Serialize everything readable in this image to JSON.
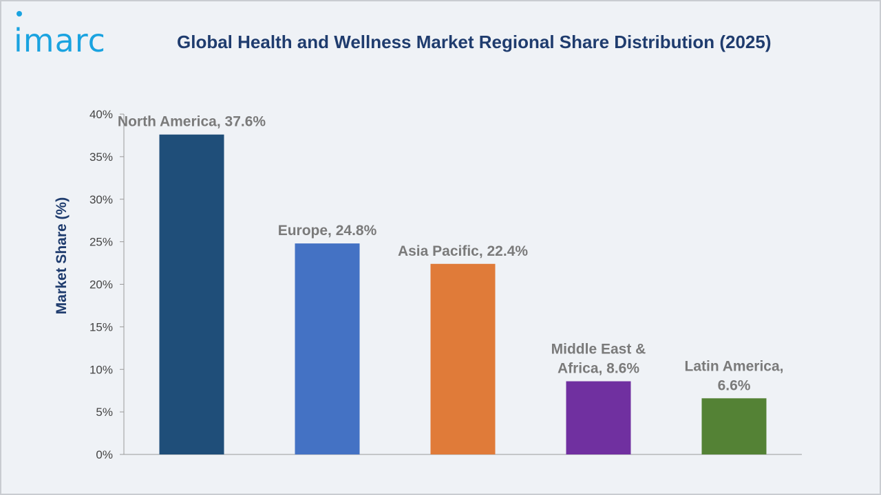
{
  "header": {
    "logo_text": "imarc",
    "title": "Global Health and Wellness Market Regional Share Distribution (2025)"
  },
  "colors": {
    "logo": "#1aa3e0",
    "title": "#1f3c6e",
    "background": "#eff2f6"
  },
  "chart_data": {
    "type": "bar",
    "title": "Global Health and Wellness Market Regional Share Distribution (2025)",
    "xlabel": "",
    "ylabel": "Market Share (%)",
    "ylim": [
      0,
      40
    ],
    "yticks": [
      "0%",
      "5%",
      "10%",
      "15%",
      "20%",
      "25%",
      "30%",
      "35%",
      "40%"
    ],
    "grid": false,
    "categories": [
      "North America",
      "Europe",
      "Asia Pacific",
      "Middle East & Africa",
      "Latin America"
    ],
    "values": [
      37.6,
      24.8,
      22.4,
      8.6,
      6.6
    ],
    "data_labels": [
      [
        "North America, 37.6%"
      ],
      [
        "Europe, 24.8%"
      ],
      [
        "Asia Pacific, 22.4%"
      ],
      [
        "Middle East &",
        "Africa, 8.6%"
      ],
      [
        "Latin America,",
        "6.6%"
      ]
    ],
    "bar_colors": [
      "#1f4e79",
      "#4472c4",
      "#e07b39",
      "#7030a0",
      "#548235"
    ]
  }
}
